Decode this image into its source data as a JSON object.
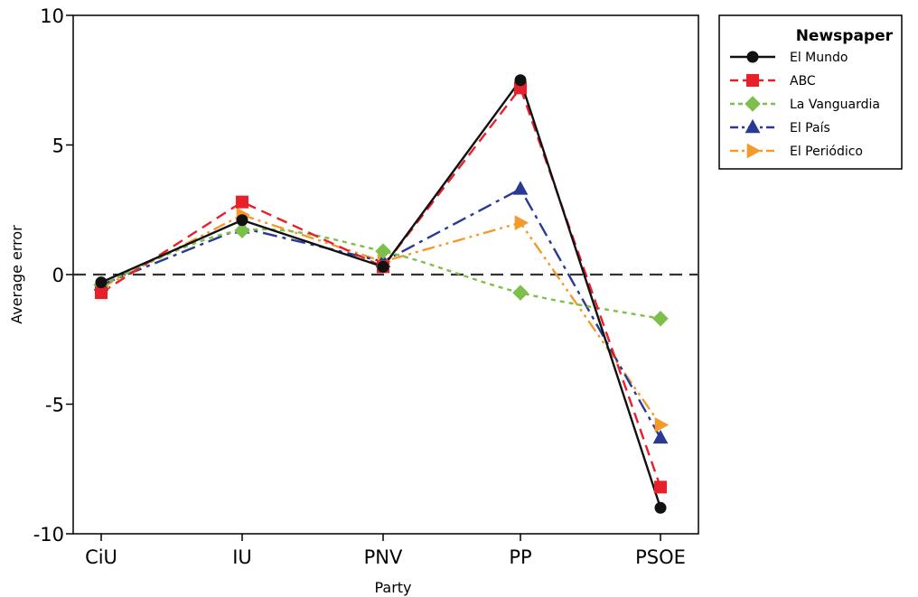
{
  "chart_data": {
    "type": "line",
    "xlabel": "Party",
    "ylabel": "Average error",
    "categories": [
      "CiU",
      "IU",
      "PNV",
      "PP",
      "PSOE"
    ],
    "ylim": [
      -10,
      10
    ],
    "yticks": [
      10,
      5,
      0,
      -5,
      -10
    ],
    "ytick_labels": [
      "10",
      "5",
      "0",
      "-5",
      "-10"
    ],
    "reference_line": 0,
    "grid": false,
    "legend": {
      "title": "Newspaper",
      "placement": "right"
    },
    "series": [
      {
        "name": "El Mundo",
        "values": [
          -0.3,
          2.1,
          0.3,
          7.5,
          -9.0
        ],
        "color": "#111111",
        "marker": "circle",
        "dash": "solid",
        "smooth": false
      },
      {
        "name": "ABC",
        "values": [
          -0.7,
          2.8,
          0.3,
          7.2,
          -8.2
        ],
        "color": "#e8202a",
        "marker": "square",
        "dash": "dashed",
        "smooth": false
      },
      {
        "name": "La Vanguardia",
        "values": [
          -0.4,
          1.7,
          0.9,
          -0.7,
          -1.7
        ],
        "color": "#7dbf4a",
        "marker": "diamond",
        "dash": "dotted",
        "smooth": true
      },
      {
        "name": "El País",
        "values": [
          -0.4,
          1.8,
          0.5,
          3.3,
          -6.3
        ],
        "color": "#2a3a94",
        "marker": "triangle-up",
        "dash": "dashdot",
        "smooth": false
      },
      {
        "name": "El Periódico",
        "values": [
          -0.5,
          2.3,
          0.5,
          2.0,
          -5.8
        ],
        "color": "#f39a2a",
        "marker": "triangle-right",
        "dash": "dashdotdot",
        "smooth": false
      }
    ]
  }
}
